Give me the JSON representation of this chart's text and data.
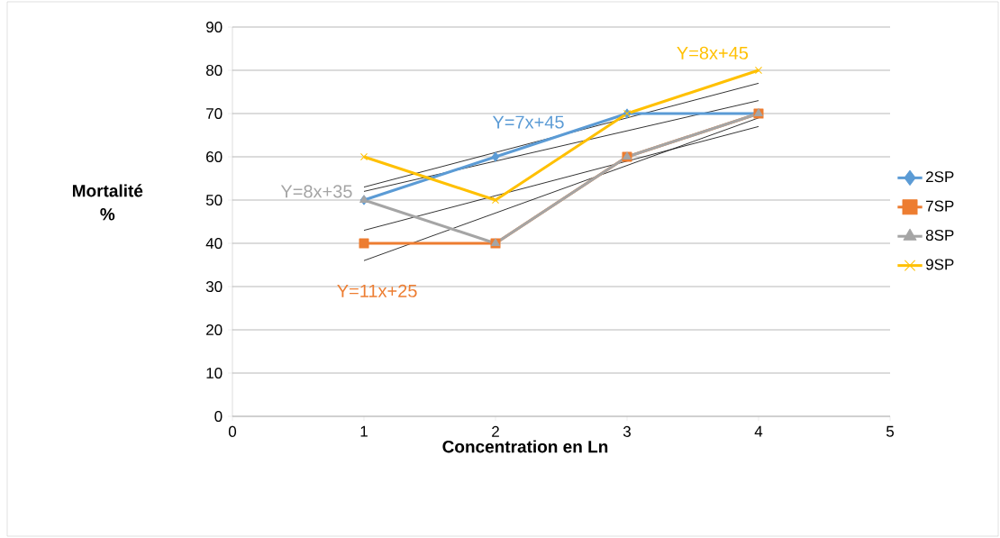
{
  "chart_data": {
    "type": "line",
    "xlabel": "Concentration en Ln",
    "ylabel": "Mortalité %",
    "x": [
      1,
      2,
      3,
      4
    ],
    "series": [
      {
        "name": "2SP",
        "color": "#5b9bd5",
        "values": [
          50,
          60,
          70,
          70
        ],
        "marker": "diamond"
      },
      {
        "name": "7SP",
        "color": "#ed7d31",
        "values": [
          40,
          40,
          60,
          70
        ],
        "marker": "square"
      },
      {
        "name": "8SP",
        "color": "#a5a5a5",
        "values": [
          50,
          40,
          60,
          70
        ],
        "marker": "triangle"
      },
      {
        "name": "9SP",
        "color": "#ffc000",
        "values": [
          60,
          50,
          70,
          80
        ],
        "marker": "cross"
      },
      {
        "color": "#000000",
        "values": [
          52,
          59,
          66,
          73
        ],
        "marker": "none"
      },
      {
        "color": "#000000",
        "values": [
          36,
          47,
          58,
          69
        ],
        "marker": "none"
      },
      {
        "color": "#000000",
        "values": [
          43,
          51,
          59,
          67
        ],
        "marker": "none"
      },
      {
        "color": "#000000",
        "values": [
          53,
          61,
          69,
          77
        ],
        "marker": "none"
      }
    ],
    "annotations": [
      "Y=7x+45",
      "Y=11x+25",
      "Y=8x+35",
      "Y=8x+45"
    ],
    "xlim": [
      0,
      5
    ],
    "xticks": [
      0,
      1,
      2,
      3,
      4,
      5
    ],
    "ylim": [
      0,
      90
    ],
    "yticks": [
      0,
      10,
      20,
      30,
      40,
      50,
      60,
      70,
      80,
      90
    ],
    "grid": "y",
    "legend": "right"
  }
}
